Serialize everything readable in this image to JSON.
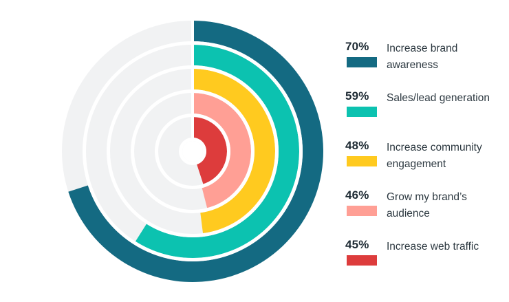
{
  "chart_data": {
    "type": "radial-bar",
    "track_color": "#f1f2f3",
    "series": [
      {
        "value": 70,
        "percent_label": "70%",
        "label": "Increase brand awareness",
        "color": "#146a82"
      },
      {
        "value": 59,
        "percent_label": "59%",
        "label": "Sales/lead generation",
        "color": "#0cc2b0"
      },
      {
        "value": 48,
        "percent_label": "48%",
        "label": "Increase community engagement",
        "color": "#ffca1f"
      },
      {
        "value": 46,
        "percent_label": "46%",
        "label": "Grow my brand’s audience",
        "color": "#ff9f95"
      },
      {
        "value": 45,
        "percent_label": "45%",
        "label": "Increase web traffic",
        "color": "#dd3c3c"
      }
    ]
  }
}
